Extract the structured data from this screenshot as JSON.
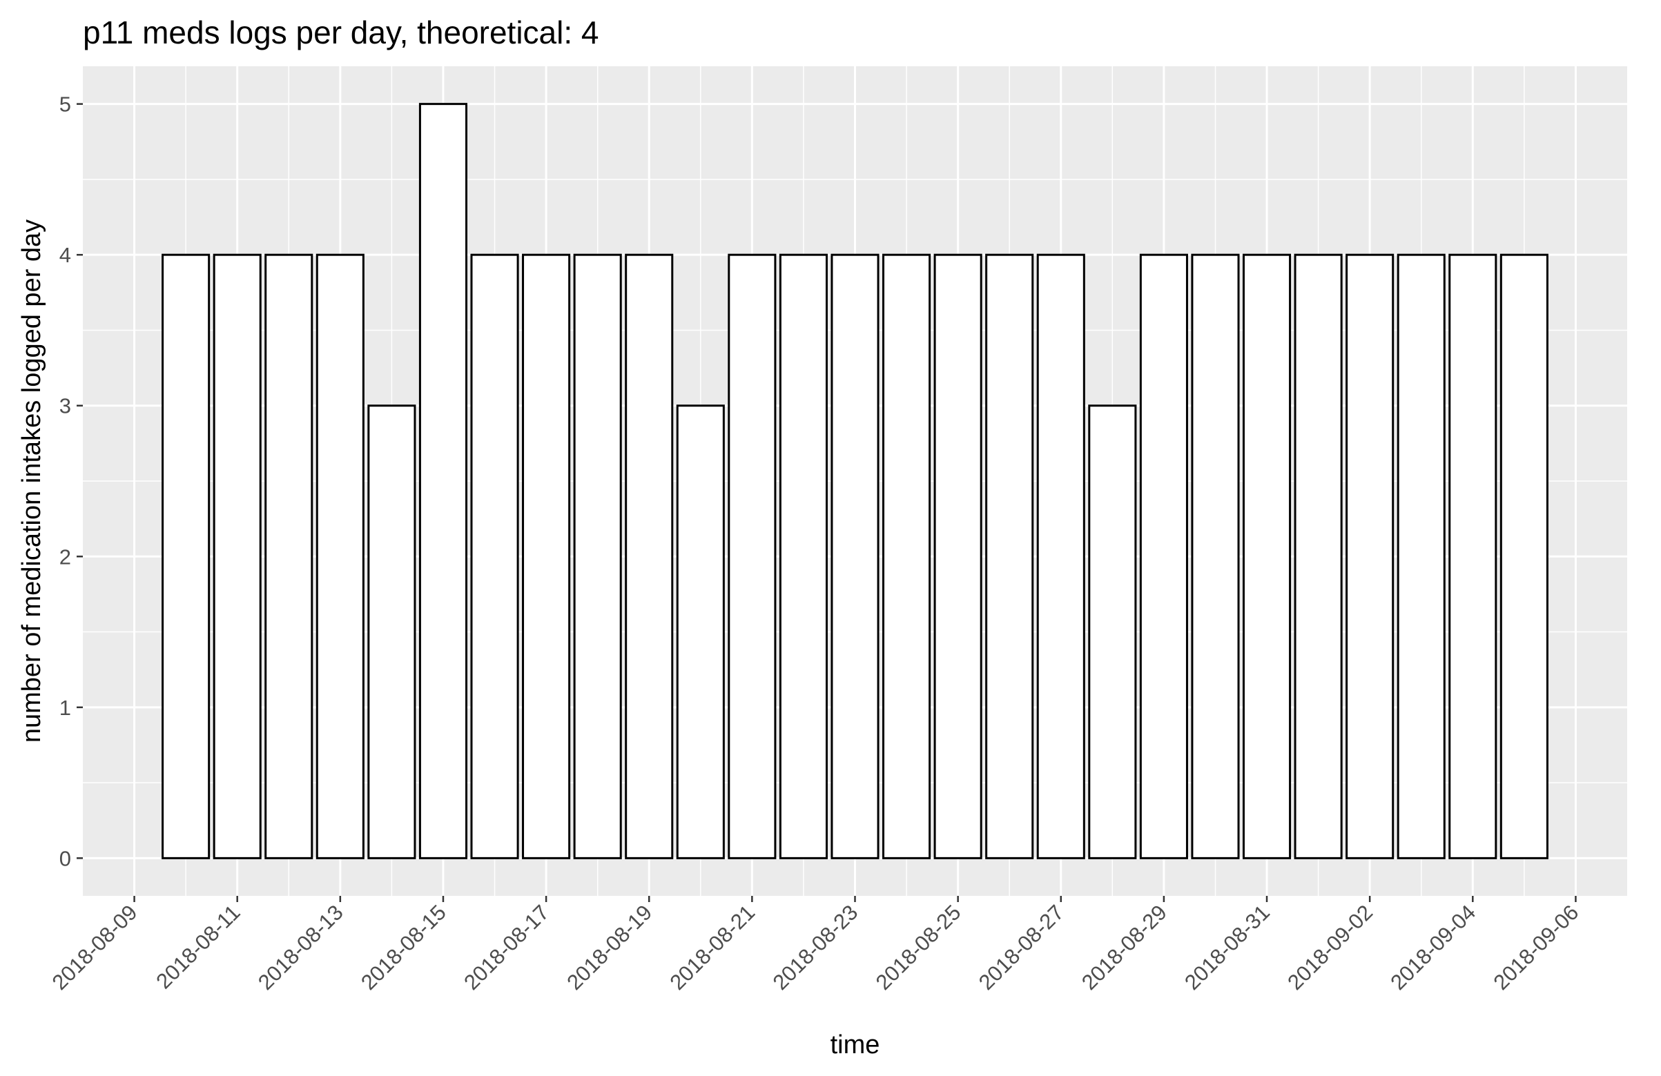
{
  "chart_data": {
    "type": "bar",
    "title": "p11 meds logs per day, theoretical: 4",
    "xlabel": "time",
    "ylabel": "number of medication intakes logged per day",
    "x_axis_type": "date",
    "xlim": [
      "2018-08-08",
      "2018-09-07"
    ],
    "ylim": [
      -0.25,
      5.25
    ],
    "yticks": [
      0,
      1,
      2,
      3,
      4,
      5
    ],
    "xticks": [
      "2018-08-09",
      "2018-08-11",
      "2018-08-13",
      "2018-08-15",
      "2018-08-17",
      "2018-08-19",
      "2018-08-21",
      "2018-08-23",
      "2018-08-25",
      "2018-08-27",
      "2018-08-29",
      "2018-08-31",
      "2018-09-02",
      "2018-09-04",
      "2018-09-06"
    ],
    "x_tick_rotation": 45,
    "grid": true,
    "legend": "none",
    "bar_fill": "#ffffff",
    "bar_outline": "#000000",
    "panel_background": "#ebebeb",
    "categories": [
      "2018-08-10",
      "2018-08-11",
      "2018-08-12",
      "2018-08-13",
      "2018-08-14",
      "2018-08-15",
      "2018-08-16",
      "2018-08-17",
      "2018-08-18",
      "2018-08-19",
      "2018-08-20",
      "2018-08-21",
      "2018-08-22",
      "2018-08-23",
      "2018-08-24",
      "2018-08-25",
      "2018-08-26",
      "2018-08-27",
      "2018-08-28",
      "2018-08-29",
      "2018-08-30",
      "2018-08-31",
      "2018-09-01",
      "2018-09-02",
      "2018-09-03",
      "2018-09-04",
      "2018-09-05"
    ],
    "values": [
      4,
      4,
      4,
      4,
      3,
      5,
      4,
      4,
      4,
      4,
      3,
      4,
      4,
      4,
      4,
      4,
      4,
      4,
      3,
      4,
      4,
      4,
      4,
      4,
      4,
      4,
      4
    ]
  }
}
